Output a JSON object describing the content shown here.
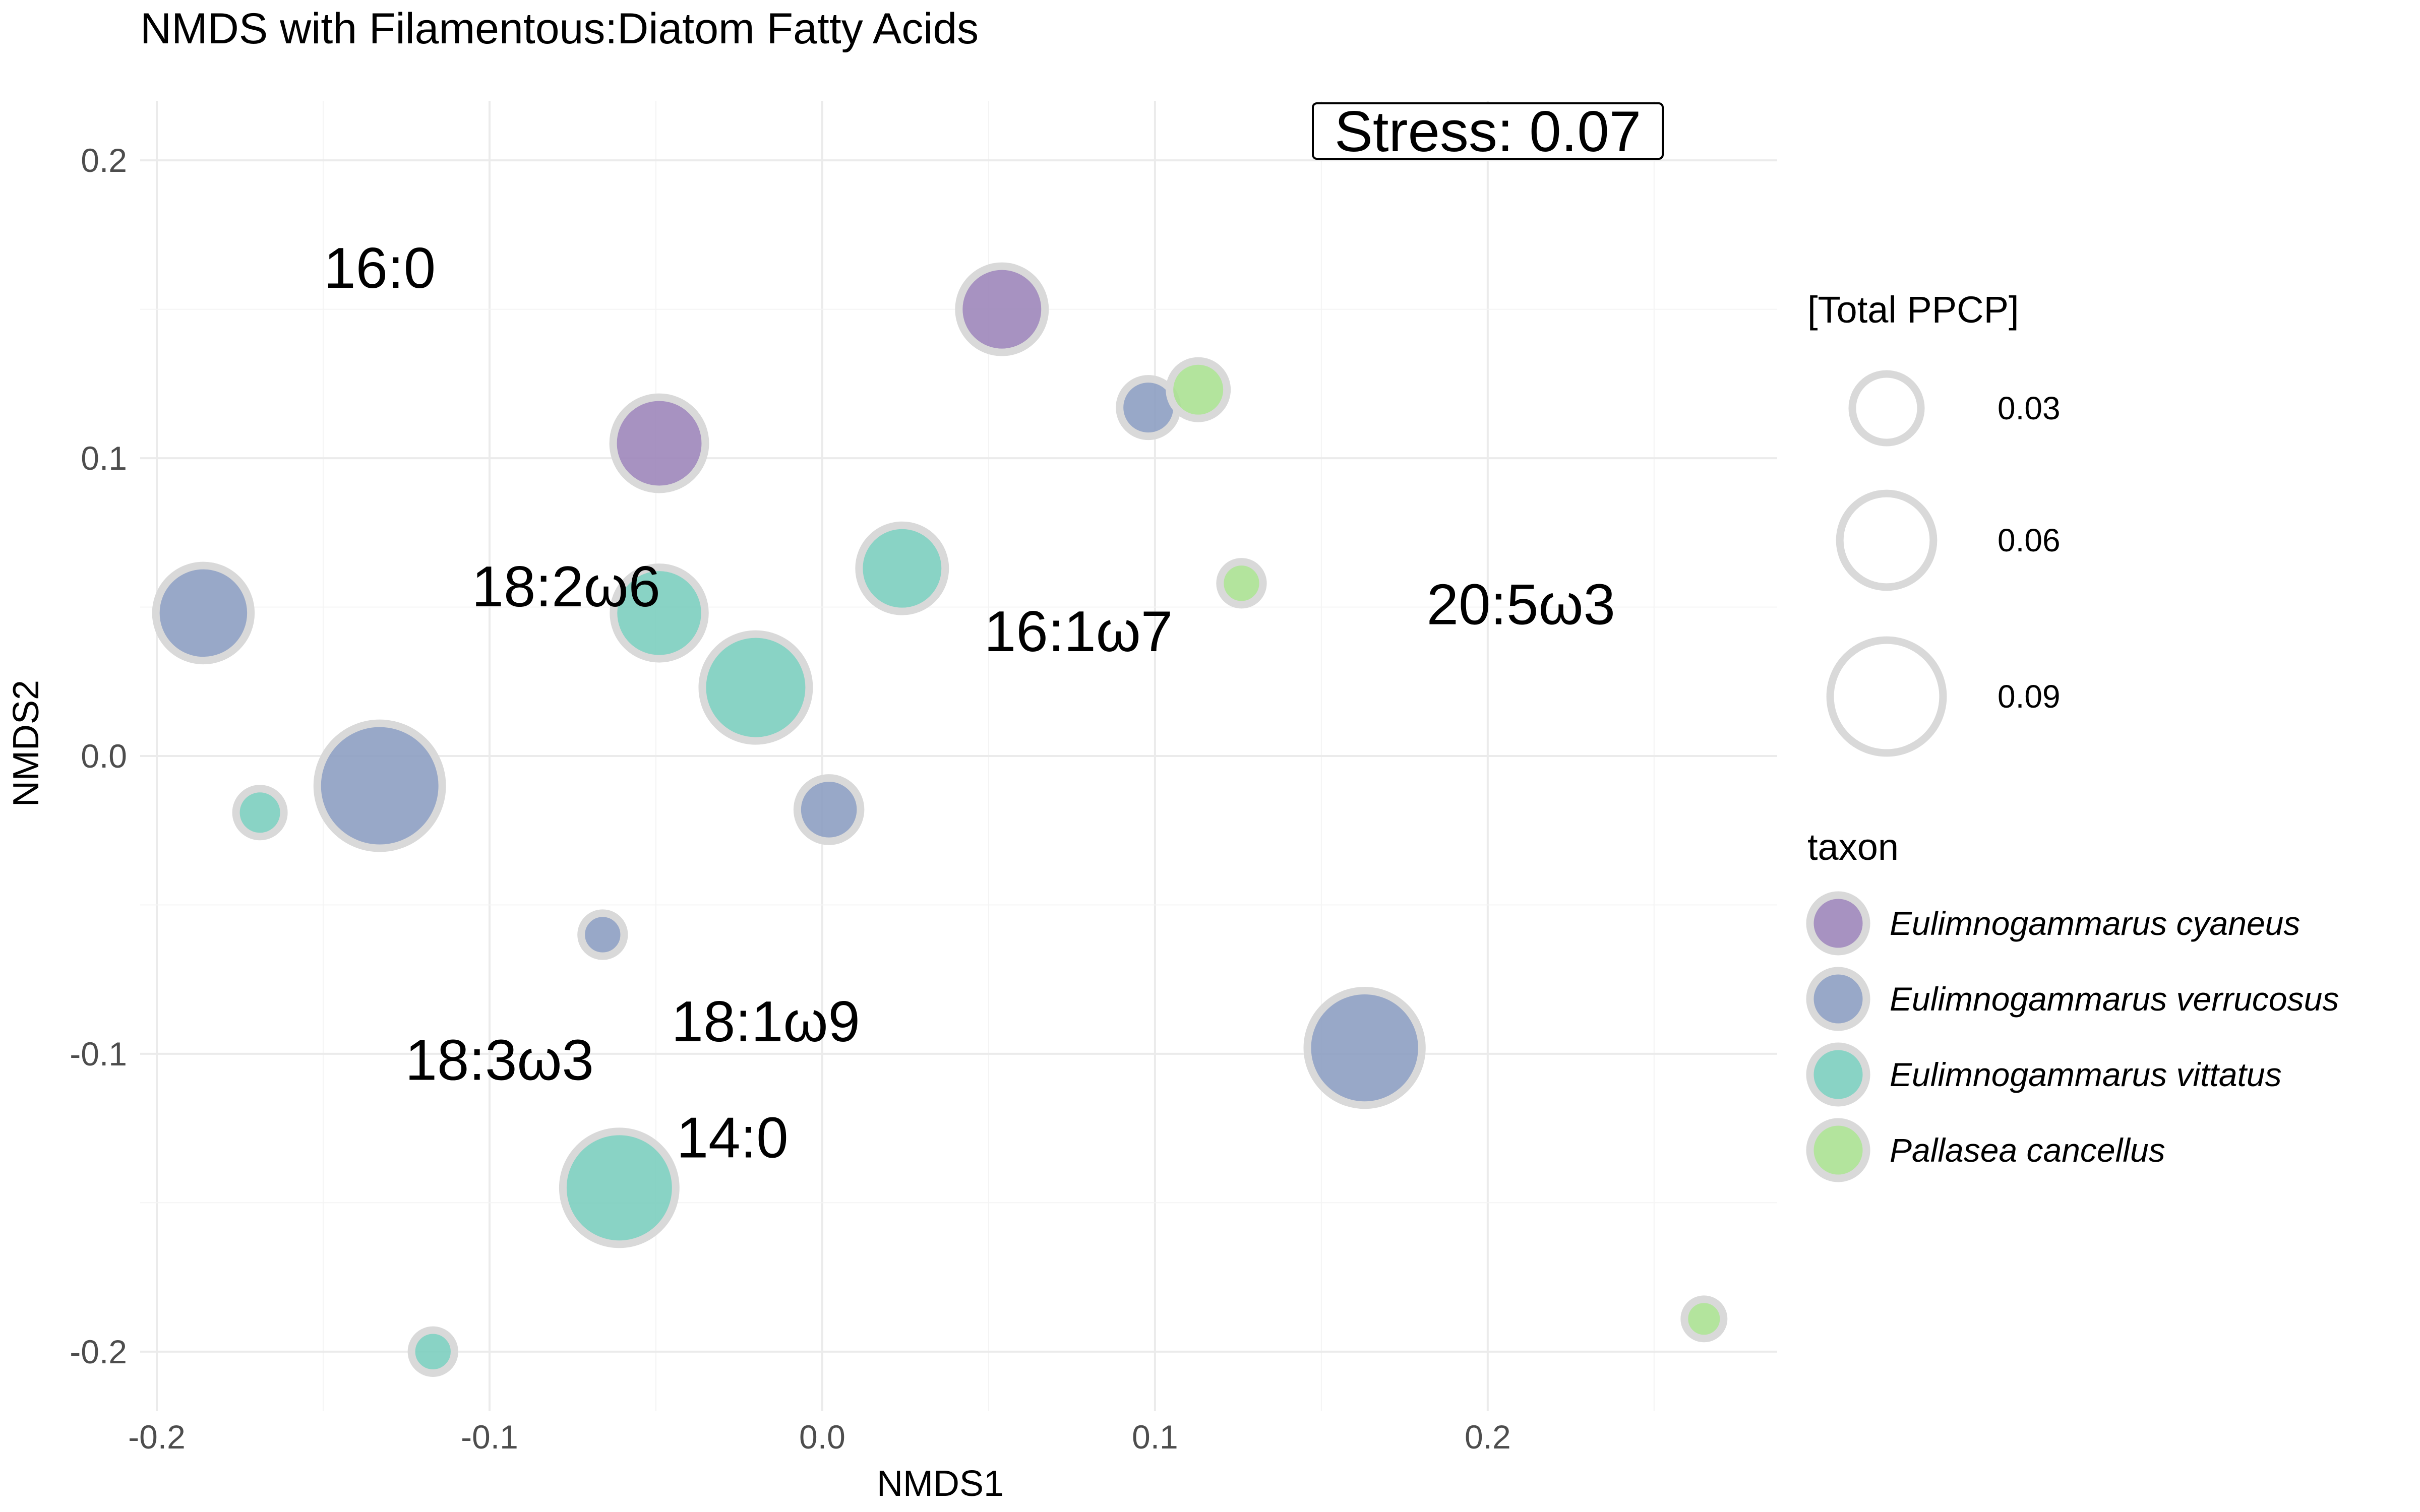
{
  "chart_data": {
    "type": "scatter",
    "title": "NMDS with Filamentous:Diatom Fatty Acids",
    "xlabel": "NMDS1",
    "ylabel": "NMDS2",
    "xlim": [
      -0.205,
      0.287
    ],
    "ylim": [
      -0.22,
      0.22
    ],
    "x_ticks": [
      -0.2,
      -0.1,
      0.0,
      0.1,
      0.2
    ],
    "x_tick_labels": [
      "-0.2",
      "-0.1",
      "0.0",
      "0.1",
      "0.2"
    ],
    "y_ticks": [
      -0.2,
      -0.1,
      0.0,
      0.1,
      0.2
    ],
    "y_tick_labels": [
      "-0.2",
      "-0.1",
      "0.0",
      "0.1",
      "0.2"
    ],
    "grid": true,
    "annotation": "Stress:  0.07",
    "colors": {
      "Eulimnogammarus cyaneus": "#9b83b8",
      "Eulimnogammarus verrucosus": "#8a9cc0",
      "Eulimnogammarus vittatus": "#79cdbd",
      "Pallasea cancellus": "#a8e08f",
      "outline": "#d9d9d9"
    },
    "size_legend": {
      "title": "[Total PPCP]",
      "values": [
        0.03,
        0.06,
        0.09
      ],
      "labels": [
        "0.03",
        "0.06",
        "0.09"
      ]
    },
    "color_legend": {
      "title": "taxon",
      "entries": [
        "Eulimnogammarus cyaneus",
        "Eulimnogammarus verrucosus",
        "Eulimnogammarus vittatus",
        "Pallasea cancellus"
      ]
    },
    "fatty_acid_labels": [
      {
        "label": "16:0",
        "x": -0.133,
        "y": 0.164
      },
      {
        "label": "18:2ω6",
        "x": -0.077,
        "y": 0.057
      },
      {
        "label": "16:1ω7",
        "x": 0.077,
        "y": 0.042
      },
      {
        "label": "20:5ω3",
        "x": 0.21,
        "y": 0.051
      },
      {
        "label": "18:1ω9",
        "x": -0.017,
        "y": -0.089
      },
      {
        "label": "18:3ω3",
        "x": -0.097,
        "y": -0.102
      },
      {
        "label": "14:0",
        "x": -0.027,
        "y": -0.128
      }
    ],
    "points": [
      {
        "taxon": "Eulimnogammarus cyaneus",
        "x": 0.054,
        "y": 0.15,
        "ppcp": 0.05
      },
      {
        "taxon": "Eulimnogammarus cyaneus",
        "x": -0.049,
        "y": 0.105,
        "ppcp": 0.058
      },
      {
        "taxon": "Eulimnogammarus verrucosus",
        "x": 0.098,
        "y": 0.117,
        "ppcp": 0.02
      },
      {
        "taxon": "Eulimnogammarus verrucosus",
        "x": -0.186,
        "y": 0.048,
        "ppcp": 0.062
      },
      {
        "taxon": "Eulimnogammarus verrucosus",
        "x": -0.133,
        "y": -0.01,
        "ppcp": 0.112
      },
      {
        "taxon": "Eulimnogammarus verrucosus",
        "x": 0.002,
        "y": -0.018,
        "ppcp": 0.025
      },
      {
        "taxon": "Eulimnogammarus verrucosus",
        "x": -0.066,
        "y": -0.06,
        "ppcp": 0.01
      },
      {
        "taxon": "Eulimnogammarus verrucosus",
        "x": 0.163,
        "y": -0.098,
        "ppcp": 0.093
      },
      {
        "taxon": "Eulimnogammarus vittatus",
        "x": 0.024,
        "y": 0.063,
        "ppcp": 0.05
      },
      {
        "taxon": "Eulimnogammarus vittatus",
        "x": -0.049,
        "y": 0.048,
        "ppcp": 0.057
      },
      {
        "taxon": "Eulimnogammarus vittatus",
        "x": -0.02,
        "y": 0.023,
        "ppcp": 0.08
      },
      {
        "taxon": "Eulimnogammarus vittatus",
        "x": -0.169,
        "y": -0.019,
        "ppcp": 0.013
      },
      {
        "taxon": "Eulimnogammarus vittatus",
        "x": -0.061,
        "y": -0.145,
        "ppcp": 0.09
      },
      {
        "taxon": "Eulimnogammarus vittatus",
        "x": -0.117,
        "y": -0.2,
        "ppcp": 0.01
      },
      {
        "taxon": "Pallasea cancellus",
        "x": 0.113,
        "y": 0.123,
        "ppcp": 0.02
      },
      {
        "taxon": "Pallasea cancellus",
        "x": 0.126,
        "y": 0.058,
        "ppcp": 0.01
      },
      {
        "taxon": "Pallasea cancellus",
        "x": 0.265,
        "y": -0.189,
        "ppcp": 0.008
      }
    ]
  }
}
